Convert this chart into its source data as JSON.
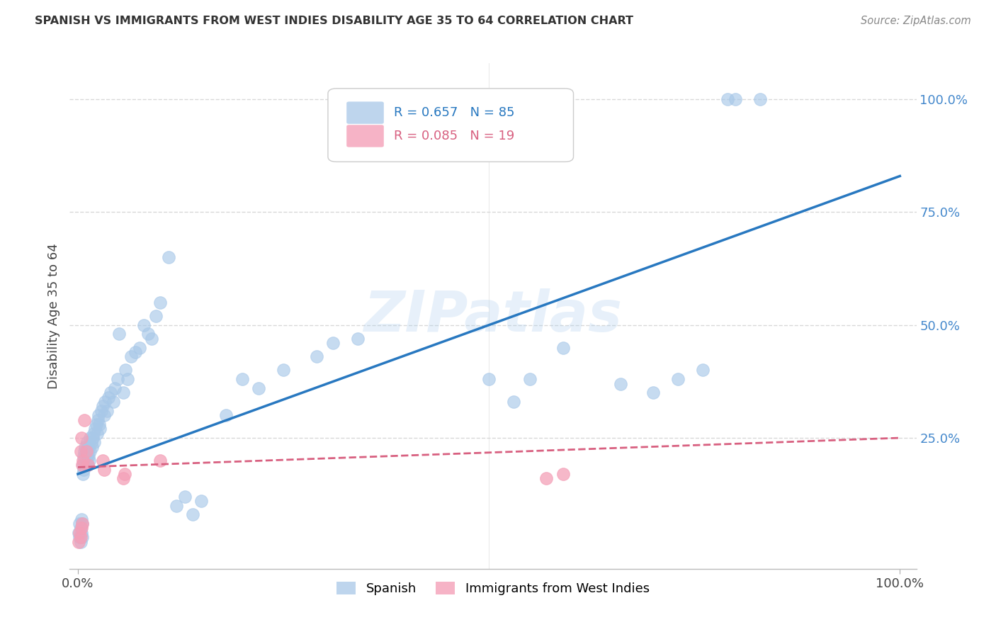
{
  "title": "SPANISH VS IMMIGRANTS FROM WEST INDIES DISABILITY AGE 35 TO 64 CORRELATION CHART",
  "source": "Source: ZipAtlas.com",
  "ylabel": "Disability Age 35 to 64",
  "xlim": [
    -0.01,
    1.02
  ],
  "ylim": [
    -0.04,
    1.08
  ],
  "watermark": "ZIPatlas",
  "legend1_label": "Spanish",
  "legend2_label": "Immigrants from West Indies",
  "R1": 0.657,
  "N1": 85,
  "R2": 0.085,
  "N2": 19,
  "blue_scatter_color": "#a8c8e8",
  "pink_scatter_color": "#f4a0b8",
  "blue_line_color": "#2878c0",
  "pink_line_color": "#d86080",
  "background_color": "#ffffff",
  "grid_color": "#d8d8d8",
  "right_tick_color": "#4488cc",
  "blue_line_slope": 0.66,
  "blue_line_intercept": 0.17,
  "pink_line_slope": 0.065,
  "pink_line_intercept": 0.185,
  "spanish_x": [
    0.001,
    0.002,
    0.002,
    0.003,
    0.003,
    0.004,
    0.004,
    0.005,
    0.005,
    0.006,
    0.006,
    0.007,
    0.007,
    0.008,
    0.008,
    0.009,
    0.009,
    0.01,
    0.01,
    0.011,
    0.011,
    0.012,
    0.012,
    0.013,
    0.013,
    0.014,
    0.015,
    0.015,
    0.016,
    0.017,
    0.018,
    0.019,
    0.02,
    0.021,
    0.022,
    0.023,
    0.024,
    0.025,
    0.026,
    0.027,
    0.028,
    0.03,
    0.032,
    0.033,
    0.035,
    0.037,
    0.04,
    0.043,
    0.045,
    0.048,
    0.05,
    0.055,
    0.058,
    0.06,
    0.065,
    0.07,
    0.075,
    0.08,
    0.085,
    0.09,
    0.095,
    0.1,
    0.11,
    0.12,
    0.13,
    0.14,
    0.15,
    0.18,
    0.2,
    0.22,
    0.25,
    0.29,
    0.31,
    0.34,
    0.5,
    0.53,
    0.55,
    0.59,
    0.66,
    0.7,
    0.73,
    0.76,
    0.79,
    0.8,
    0.83
  ],
  "spanish_y": [
    0.04,
    0.03,
    0.06,
    0.02,
    0.05,
    0.04,
    0.07,
    0.03,
    0.06,
    0.17,
    0.19,
    0.18,
    0.21,
    0.2,
    0.22,
    0.19,
    0.23,
    0.2,
    0.22,
    0.21,
    0.24,
    0.19,
    0.22,
    0.21,
    0.23,
    0.2,
    0.22,
    0.25,
    0.24,
    0.23,
    0.25,
    0.26,
    0.24,
    0.27,
    0.28,
    0.26,
    0.29,
    0.3,
    0.28,
    0.27,
    0.31,
    0.32,
    0.3,
    0.33,
    0.31,
    0.34,
    0.35,
    0.33,
    0.36,
    0.38,
    0.48,
    0.35,
    0.4,
    0.38,
    0.43,
    0.44,
    0.45,
    0.5,
    0.48,
    0.47,
    0.52,
    0.55,
    0.65,
    0.1,
    0.12,
    0.08,
    0.11,
    0.3,
    0.38,
    0.36,
    0.4,
    0.43,
    0.46,
    0.47,
    0.38,
    0.33,
    0.38,
    0.45,
    0.37,
    0.35,
    0.38,
    0.4,
    1.0,
    1.0,
    1.0
  ],
  "wi_x": [
    0.001,
    0.002,
    0.003,
    0.003,
    0.004,
    0.004,
    0.005,
    0.005,
    0.006,
    0.008,
    0.01,
    0.012,
    0.03,
    0.032,
    0.055,
    0.057,
    0.1,
    0.57,
    0.59
  ],
  "wi_y": [
    0.02,
    0.04,
    0.03,
    0.22,
    0.05,
    0.25,
    0.06,
    0.19,
    0.2,
    0.29,
    0.22,
    0.19,
    0.2,
    0.18,
    0.16,
    0.17,
    0.2,
    0.16,
    0.17
  ]
}
